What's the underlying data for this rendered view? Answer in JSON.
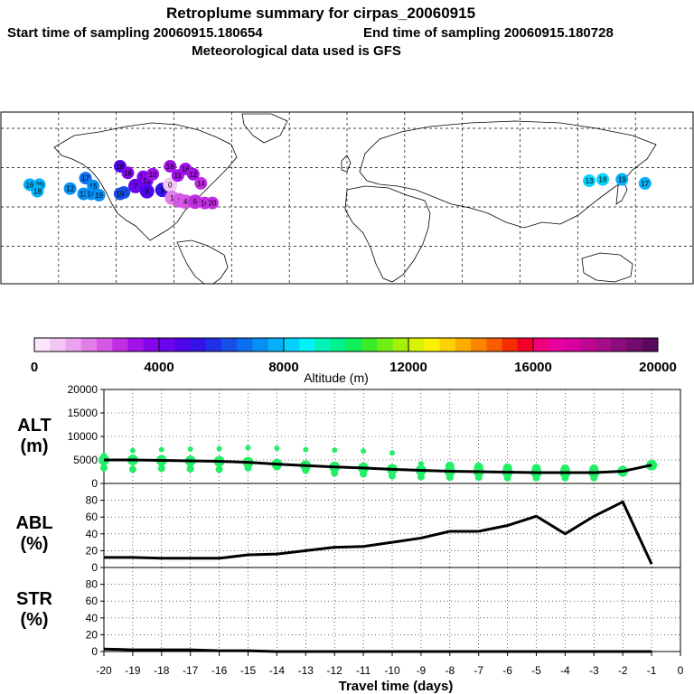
{
  "header": {
    "title": "Retroplume summary for cirpas_20060915",
    "start_label": "Start time of sampling 20060915.180654",
    "end_label": "End time of sampling 20060915.180728",
    "met_label": "Meteorological data used is GFS"
  },
  "colors": {
    "palette": [
      "#fbe6fb",
      "#f3c6f3",
      "#eca2ee",
      "#e27de8",
      "#d657e4",
      "#c02ee2",
      "#a112e8",
      "#8306ec",
      "#6a05ec",
      "#4f06ea",
      "#3412e6",
      "#2030e4",
      "#1650e6",
      "#0b6ff0",
      "#0790f4",
      "#05b0f8",
      "#03d3fc",
      "#00f2f5",
      "#00f2b6",
      "#00f08c",
      "#10ee5c",
      "#3cec28",
      "#6eee16",
      "#a4f008",
      "#d8f404",
      "#faf200",
      "#fcd200",
      "#fcae00",
      "#fa8600",
      "#f85e00",
      "#f52d00",
      "#f2002a",
      "#f0007a",
      "#e8009e",
      "#d800a0",
      "#be0894",
      "#a60e88",
      "#8c0c7c",
      "#720c6e",
      "#5a0a5a"
    ],
    "alt_dot_color": "#22ee66",
    "map_land_line": "#000000",
    "grid_line": "#000000"
  },
  "colorbar": {
    "ticks": [
      "0",
      "4000",
      "8000",
      "12000",
      "16000",
      "20000"
    ],
    "label": "Altitude (m)",
    "min": 0,
    "max": 20000
  },
  "map": {
    "plume_points": [
      {
        "lon": -118,
        "lat": 31,
        "label": "18",
        "color": "#4f06ea"
      },
      {
        "lon": -114,
        "lat": 26,
        "label": "16",
        "color": "#8306ec"
      },
      {
        "lon": -106,
        "lat": 23,
        "label": "14",
        "color": "#8306ec"
      },
      {
        "lon": -104,
        "lat": 20,
        "label": "12",
        "color": "#8306ec"
      },
      {
        "lon": -101,
        "lat": 25,
        "label": "10",
        "color": "#a112e8"
      },
      {
        "lon": -110,
        "lat": 16,
        "label": "7",
        "color": "#6a05ec"
      },
      {
        "lon": -104,
        "lat": 12,
        "label": "8",
        "color": "#4f06ea"
      },
      {
        "lon": -96,
        "lat": 13,
        "label": "9",
        "color": "#3412e6"
      },
      {
        "lon": -92,
        "lat": 17,
        "label": "0",
        "color": "#f3c6f3"
      },
      {
        "lon": -91,
        "lat": 7,
        "label": "1",
        "color": "#e27de8"
      },
      {
        "lon": -87,
        "lat": 5,
        "label": "3",
        "color": "#d657e4"
      },
      {
        "lon": -84,
        "lat": 4,
        "label": "4",
        "color": "#d657e4"
      },
      {
        "lon": -79,
        "lat": 4,
        "label": "6",
        "color": "#c02ee2"
      },
      {
        "lon": -74,
        "lat": 3,
        "label": "14",
        "color": "#c02ee2"
      },
      {
        "lon": -70,
        "lat": 3,
        "label": "20",
        "color": "#c02ee2"
      },
      {
        "lon": -92,
        "lat": 31,
        "label": "18",
        "color": "#a112e8"
      },
      {
        "lon": -84,
        "lat": 29,
        "label": "16",
        "color": "#a112e8"
      },
      {
        "lon": -80,
        "lat": 25,
        "label": "12",
        "color": "#a112e8"
      },
      {
        "lon": -88,
        "lat": 24,
        "label": "11",
        "color": "#a112e8"
      },
      {
        "lon": -76,
        "lat": 18,
        "label": "14",
        "color": "#c02ee2"
      },
      {
        "lon": -116,
        "lat": 11,
        "label": "11",
        "color": "#1650e6"
      },
      {
        "lon": -118,
        "lat": 10,
        "label": "19",
        "color": "#1650e6"
      },
      {
        "lon": -136,
        "lat": 22,
        "label": "17",
        "color": "#0b6ff0"
      },
      {
        "lon": -132,
        "lat": 16,
        "label": "15",
        "color": "#0790f4"
      },
      {
        "lon": -144,
        "lat": 14,
        "label": "12",
        "color": "#0790f4"
      },
      {
        "lon": -137,
        "lat": 10,
        "label": "13",
        "color": "#0790f4"
      },
      {
        "lon": -133,
        "lat": 10,
        "label": "14",
        "color": "#0790f4"
      },
      {
        "lon": -129,
        "lat": 9,
        "label": "19",
        "color": "#0790f4"
      },
      {
        "lon": -160,
        "lat": 17,
        "label": "20",
        "color": "#05b0f8"
      },
      {
        "lon": -165,
        "lat": 17,
        "label": "16",
        "color": "#05b0f8"
      },
      {
        "lon": -161,
        "lat": 12,
        "label": "18",
        "color": "#05b0f8"
      },
      {
        "lon": 143,
        "lat": 21,
        "label": "19",
        "color": "#05b0f8"
      },
      {
        "lon": 155,
        "lat": 18,
        "label": "17",
        "color": "#05b0f8"
      },
      {
        "lon": 126,
        "lat": 20,
        "label": "13",
        "color": "#03d3fc"
      },
      {
        "lon": 133,
        "lat": 21,
        "label": "18",
        "color": "#03d3fc"
      }
    ]
  },
  "chart_data": [
    {
      "type": "scatter",
      "panel": "ALT",
      "title": "ALT",
      "ylabel": "(m)",
      "ylim": [
        0,
        20000
      ],
      "yticks": [
        "0",
        "5000",
        "10000",
        "15000",
        "20000"
      ],
      "xlim": [
        -20,
        0
      ],
      "x": [
        -20,
        -19,
        -18,
        -17,
        -16,
        -15,
        -14,
        -13,
        -12,
        -11,
        -10,
        -9,
        -8,
        -7,
        -6,
        -5,
        -4,
        -3,
        -2,
        -1
      ],
      "line_values": [
        5000,
        5000,
        4900,
        4800,
        4700,
        4500,
        4100,
        3800,
        3500,
        3300,
        3000,
        2800,
        2600,
        2500,
        2400,
        2300,
        2300,
        2300,
        2600,
        3900
      ],
      "upper_dots": [
        6000,
        7000,
        7200,
        7300,
        7400,
        7600,
        7500,
        7200,
        7100,
        6900,
        6500,
        4200,
        3700,
        3500,
        3300,
        3200,
        3100,
        3100,
        2700,
        4000
      ],
      "lower_dots": [
        3300,
        3000,
        3200,
        3100,
        3000,
        3300,
        3500,
        2800,
        2200,
        2000,
        1600,
        1400,
        1300,
        1300,
        1200,
        1200,
        1200,
        1200,
        2400,
        3800
      ]
    },
    {
      "type": "line",
      "panel": "ABL",
      "title": "ABL",
      "ylabel": "(%)",
      "ylim": [
        0,
        100
      ],
      "yticks": [
        "0",
        "20",
        "40",
        "60",
        "80"
      ],
      "x": [
        -20,
        -19,
        -18,
        -17,
        -16,
        -15,
        -14,
        -13,
        -12,
        -11,
        -10,
        -9,
        -8,
        -7,
        -6,
        -5,
        -4,
        -3,
        -2,
        -1
      ],
      "values": [
        12,
        12,
        11,
        11,
        11,
        15,
        16,
        20,
        24,
        25,
        30,
        35,
        43,
        43,
        50,
        61,
        40,
        61,
        78,
        4
      ]
    },
    {
      "type": "line",
      "panel": "STR",
      "title": "STR",
      "ylabel": "(%)",
      "ylim": [
        0,
        100
      ],
      "yticks": [
        "0",
        "20",
        "40",
        "60",
        "80"
      ],
      "x": [
        -20,
        -19,
        -18,
        -17,
        -16,
        -15,
        -14,
        -13,
        -12,
        -11,
        -10,
        -9,
        -8,
        -7,
        -6,
        -5,
        -4,
        -3,
        -2,
        -1
      ],
      "values": [
        3,
        2,
        2,
        2,
        1,
        1,
        0,
        0,
        0,
        0,
        0,
        0,
        0,
        0,
        0,
        0,
        0,
        0,
        0,
        0
      ]
    }
  ],
  "x_axis": {
    "ticks": [
      "-20",
      "-19",
      "-18",
      "-17",
      "-16",
      "-15",
      "-14",
      "-13",
      "-12",
      "-11",
      "-10",
      "-9",
      "-8",
      "-7",
      "-6",
      "-5",
      "-4",
      "-3",
      "-2",
      "-1",
      "0"
    ],
    "label": "Travel time (days)"
  }
}
